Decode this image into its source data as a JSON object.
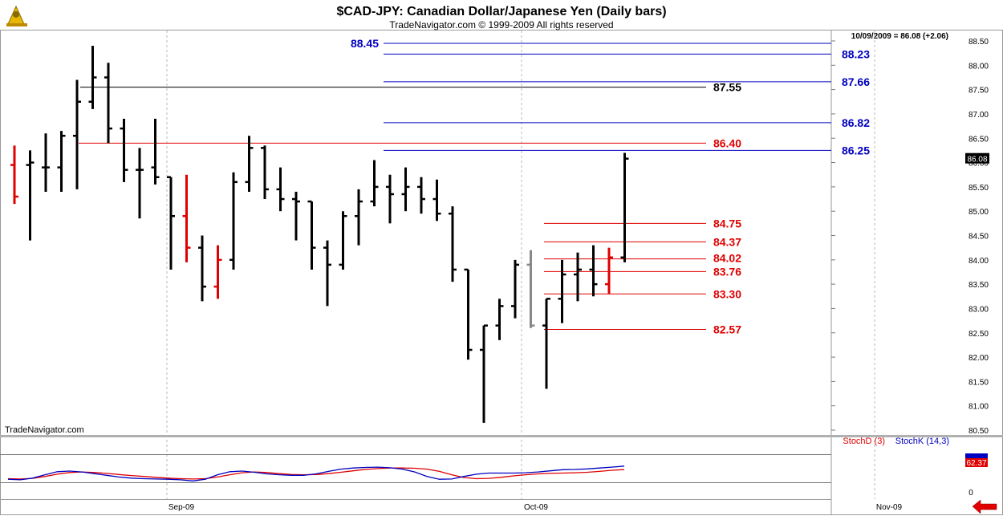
{
  "header": {
    "title": "$CAD-JPY:  Canadian Dollar/Japanese Yen  (Daily bars)",
    "copyright": "TradeNavigator.com © 1999-2009 All rights reserved",
    "last_quote": "10/09/2009 = 86.08 (+2.06)",
    "watermark": "TradeNavigator.com"
  },
  "icons": {
    "logo": "sextant-logo-icon",
    "nav": "red-left-arrow-icon"
  },
  "colors": {
    "up_bar": "#000000",
    "down_bar": "#e00000",
    "neutral_bar": "#888888",
    "blue_level": "#0000c0",
    "red_level": "#e00000",
    "black_level": "#000000",
    "stoch_d": "#e00000",
    "stoch_k": "#0000c0"
  },
  "chart_data": [
    {
      "type": "ohlc",
      "title": "$CAD-JPY:  Canadian Dollar/Japanese Yen  (Daily bars)",
      "x_labels": [
        "Sep-09",
        "Oct-09",
        "Nov-09"
      ],
      "y_ticks": [
        "80.50",
        "81.00",
        "81.50",
        "82.00",
        "82.50",
        "83.00",
        "83.50",
        "84.00",
        "84.50",
        "85.00",
        "85.50",
        "86.00",
        "86.50",
        "87.00",
        "87.50",
        "88.00",
        "88.50"
      ],
      "ylim": [
        80.4,
        88.6
      ],
      "last_price": "86.08",
      "grid": "dashed verticals at month starts",
      "bars": [
        {
          "o": 85.95,
          "h": 86.35,
          "l": 85.15,
          "c": 85.3,
          "col": "red"
        },
        {
          "o": 85.95,
          "h": 86.25,
          "l": 84.4,
          "c": 86.0,
          "col": "black"
        },
        {
          "o": 85.9,
          "h": 86.6,
          "l": 85.4,
          "c": 85.9,
          "col": "black"
        },
        {
          "o": 85.9,
          "h": 86.65,
          "l": 85.4,
          "c": 86.55,
          "col": "black"
        },
        {
          "o": 86.55,
          "h": 87.7,
          "l": 85.45,
          "c": 87.25,
          "col": "black"
        },
        {
          "o": 87.25,
          "h": 88.4,
          "l": 87.1,
          "c": 87.75,
          "col": "black"
        },
        {
          "o": 87.75,
          "h": 88.05,
          "l": 86.4,
          "c": 86.7,
          "col": "black"
        },
        {
          "o": 86.7,
          "h": 86.9,
          "l": 85.6,
          "c": 85.85,
          "col": "black"
        },
        {
          "o": 85.85,
          "h": 86.3,
          "l": 84.85,
          "c": 85.85,
          "col": "black"
        },
        {
          "o": 85.9,
          "h": 86.9,
          "l": 85.55,
          "c": 85.7,
          "col": "black"
        },
        {
          "o": 85.7,
          "h": 85.7,
          "l": 83.8,
          "c": 84.9,
          "col": "black"
        },
        {
          "o": 84.9,
          "h": 85.75,
          "l": 83.95,
          "c": 84.25,
          "col": "red"
        },
        {
          "o": 84.25,
          "h": 84.5,
          "l": 83.15,
          "c": 83.45,
          "col": "black"
        },
        {
          "o": 83.45,
          "h": 84.3,
          "l": 83.2,
          "c": 84.0,
          "col": "red"
        },
        {
          "o": 84.0,
          "h": 85.8,
          "l": 83.8,
          "c": 85.6,
          "col": "black"
        },
        {
          "o": 85.6,
          "h": 86.55,
          "l": 85.4,
          "c": 86.3,
          "col": "black"
        },
        {
          "o": 86.3,
          "h": 86.35,
          "l": 85.25,
          "c": 85.45,
          "col": "black"
        },
        {
          "o": 85.45,
          "h": 85.9,
          "l": 85.0,
          "c": 85.25,
          "col": "black"
        },
        {
          "o": 85.25,
          "h": 85.4,
          "l": 84.4,
          "c": 85.2,
          "col": "black"
        },
        {
          "o": 85.2,
          "h": 85.2,
          "l": 83.8,
          "c": 84.25,
          "col": "black"
        },
        {
          "o": 84.25,
          "h": 84.4,
          "l": 83.05,
          "c": 83.9,
          "col": "black"
        },
        {
          "o": 83.9,
          "h": 85.0,
          "l": 83.8,
          "c": 84.9,
          "col": "black"
        },
        {
          "o": 84.9,
          "h": 85.45,
          "l": 84.3,
          "c": 85.2,
          "col": "black"
        },
        {
          "o": 85.2,
          "h": 86.05,
          "l": 85.1,
          "c": 85.5,
          "col": "black"
        },
        {
          "o": 85.5,
          "h": 85.75,
          "l": 84.75,
          "c": 85.35,
          "col": "black"
        },
        {
          "o": 85.35,
          "h": 85.9,
          "l": 85.0,
          "c": 85.5,
          "col": "black"
        },
        {
          "o": 85.5,
          "h": 85.7,
          "l": 84.95,
          "c": 85.25,
          "col": "black"
        },
        {
          "o": 85.25,
          "h": 85.65,
          "l": 84.8,
          "c": 84.95,
          "col": "black"
        },
        {
          "o": 84.95,
          "h": 85.1,
          "l": 83.55,
          "c": 83.8,
          "col": "black"
        },
        {
          "o": 83.8,
          "h": 83.8,
          "l": 81.95,
          "c": 82.15,
          "col": "black"
        },
        {
          "o": 82.15,
          "h": 82.65,
          "l": 80.65,
          "c": 82.65,
          "col": "black"
        },
        {
          "o": 82.65,
          "h": 83.2,
          "l": 82.35,
          "c": 83.05,
          "col": "black"
        },
        {
          "o": 83.05,
          "h": 84.0,
          "l": 82.8,
          "c": 83.9,
          "col": "black"
        },
        {
          "o": 83.9,
          "h": 84.2,
          "l": 82.6,
          "c": 82.65,
          "col": "grey"
        },
        {
          "o": 82.65,
          "h": 83.2,
          "l": 81.35,
          "c": 83.2,
          "col": "black"
        },
        {
          "o": 83.2,
          "h": 84.0,
          "l": 82.7,
          "c": 83.7,
          "col": "black"
        },
        {
          "o": 83.7,
          "h": 84.15,
          "l": 83.15,
          "c": 83.8,
          "col": "black"
        },
        {
          "o": 83.8,
          "h": 84.3,
          "l": 83.25,
          "c": 83.5,
          "col": "black"
        },
        {
          "o": 83.5,
          "h": 84.25,
          "l": 83.3,
          "c": 84.05,
          "col": "red"
        },
        {
          "o": 84.05,
          "h": 86.2,
          "l": 83.95,
          "c": 86.08,
          "col": "black"
        }
      ],
      "levels": [
        {
          "label": "88.45",
          "value": 88.45,
          "color": "blue"
        },
        {
          "label": "88.23",
          "value": 88.23,
          "color": "blue"
        },
        {
          "label": "87.66",
          "value": 87.66,
          "color": "blue"
        },
        {
          "label": "87.55",
          "value": 87.55,
          "color": "black"
        },
        {
          "label": "86.82",
          "value": 86.82,
          "color": "blue"
        },
        {
          "label": "86.40",
          "value": 86.4,
          "color": "red"
        },
        {
          "label": "86.25",
          "value": 86.25,
          "color": "blue"
        },
        {
          "label": "84.75",
          "value": 84.75,
          "color": "red"
        },
        {
          "label": "84.37",
          "value": 84.37,
          "color": "red"
        },
        {
          "label": "84.02",
          "value": 84.02,
          "color": "red"
        },
        {
          "label": "83.76",
          "value": 83.76,
          "color": "red"
        },
        {
          "label": "83.30",
          "value": 83.3,
          "color": "red"
        },
        {
          "label": "82.57",
          "value": 82.57,
          "color": "red"
        }
      ]
    },
    {
      "type": "line",
      "legend": [
        "StochD (3)",
        "StochK (14,3)"
      ],
      "y_tick": "0",
      "ylim": [
        0,
        100
      ],
      "value_badges": [
        "62.37"
      ],
      "series": [
        {
          "name": "StochD (3)",
          "values": [
            30,
            29,
            31,
            38,
            46,
            52,
            54,
            52,
            49,
            45,
            41,
            38,
            35,
            32,
            30,
            29,
            30,
            36,
            44,
            51,
            54,
            52,
            48,
            45,
            44,
            45,
            48,
            53,
            58,
            63,
            66,
            68,
            68,
            67,
            64,
            56,
            44,
            34,
            30,
            31,
            35,
            40,
            44,
            47,
            49,
            50,
            51,
            53,
            56,
            60,
            62.37
          ]
        },
        {
          "name": "StochK (14,3)",
          "values": [
            28,
            26,
            32,
            44,
            55,
            57,
            54,
            48,
            42,
            36,
            32,
            30,
            29,
            28,
            26,
            22,
            28,
            44,
            55,
            57,
            53,
            47,
            44,
            42,
            42,
            47,
            56,
            64,
            68,
            70,
            71,
            69,
            64,
            54,
            38,
            28,
            29,
            38,
            46,
            50,
            50,
            50,
            51,
            54,
            58,
            62,
            63,
            65,
            68,
            71,
            75
          ]
        }
      ]
    }
  ]
}
